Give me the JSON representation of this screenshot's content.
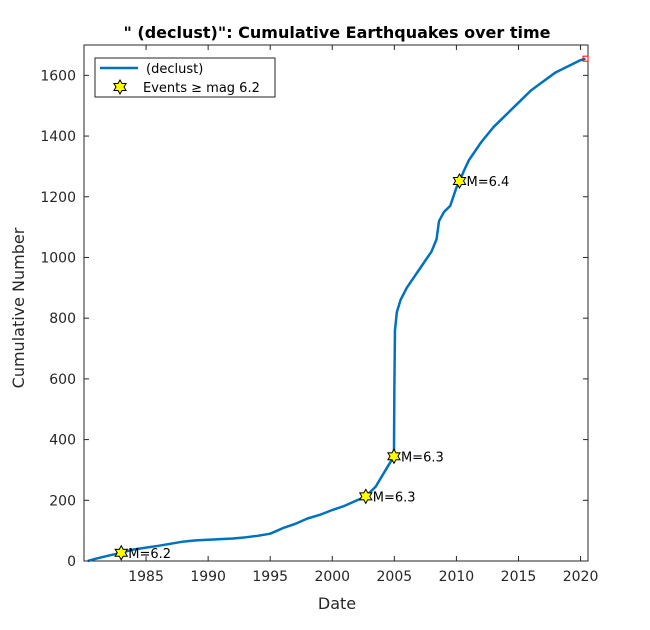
{
  "chart_data": {
    "type": "line",
    "title": "\" (declust)\": Cumulative Earthquakes over time",
    "xlabel": "Date",
    "ylabel": "Cumulative Number",
    "xlim": [
      1980.0,
      2020.6
    ],
    "ylim": [
      0,
      1700
    ],
    "x_ticks": [
      1985,
      1990,
      1995,
      2000,
      2005,
      2010,
      2015,
      2020
    ],
    "y_ticks": [
      0,
      200,
      400,
      600,
      800,
      1000,
      1200,
      1400,
      1600
    ],
    "grid": false,
    "legend_position": "top-left",
    "colors": {
      "line": "#0072BD",
      "star_fill": "#FFFF00",
      "star_stroke": "#000000",
      "end_marker": "#FF0000"
    },
    "series": [
      {
        "name": " (declust)",
        "x": [
          1980.3,
          1981,
          1982,
          1983.0,
          1984,
          1985,
          1986,
          1987,
          1988,
          1989,
          1990,
          1991,
          1992,
          1993,
          1994,
          1995,
          1996,
          1997,
          1998,
          1999,
          2000,
          2001,
          2002,
          2002.7,
          2003.5,
          2004.3,
          2004.97,
          2005.0,
          2005.05,
          2005.2,
          2005.5,
          2006,
          2006.5,
          2007,
          2007.5,
          2008,
          2008.4,
          2008.6,
          2009,
          2009.5,
          2010,
          2010.25,
          2010.6,
          2011,
          2011.5,
          2012,
          2013,
          2014,
          2015,
          2016,
          2017,
          2018,
          2019,
          2020,
          2020.4
        ],
        "y": [
          0,
          8,
          18,
          27,
          38,
          44,
          50,
          57,
          64,
          68,
          70,
          72,
          74,
          78,
          83,
          90,
          108,
          122,
          140,
          152,
          168,
          182,
          200,
          213,
          245,
          300,
          345,
          560,
          760,
          820,
          860,
          900,
          930,
          960,
          990,
          1020,
          1060,
          1120,
          1150,
          1170,
          1230,
          1252,
          1285,
          1320,
          1350,
          1380,
          1430,
          1470,
          1510,
          1550,
          1580,
          1610,
          1630,
          1650,
          1655
        ]
      }
    ],
    "events": [
      {
        "x": 1983.0,
        "y": 27,
        "label": "M=6.2"
      },
      {
        "x": 2002.7,
        "y": 213,
        "label": "M=6.3"
      },
      {
        "x": 2004.97,
        "y": 345,
        "label": "M=6.3"
      },
      {
        "x": 2010.25,
        "y": 1252,
        "label": "M=6.4"
      }
    ],
    "end_point": {
      "x": 2020.4,
      "y": 1655
    },
    "legend": [
      {
        "label": " (declust)",
        "kind": "line"
      },
      {
        "label": "Events ≥ mag 6.2",
        "kind": "star"
      }
    ]
  }
}
